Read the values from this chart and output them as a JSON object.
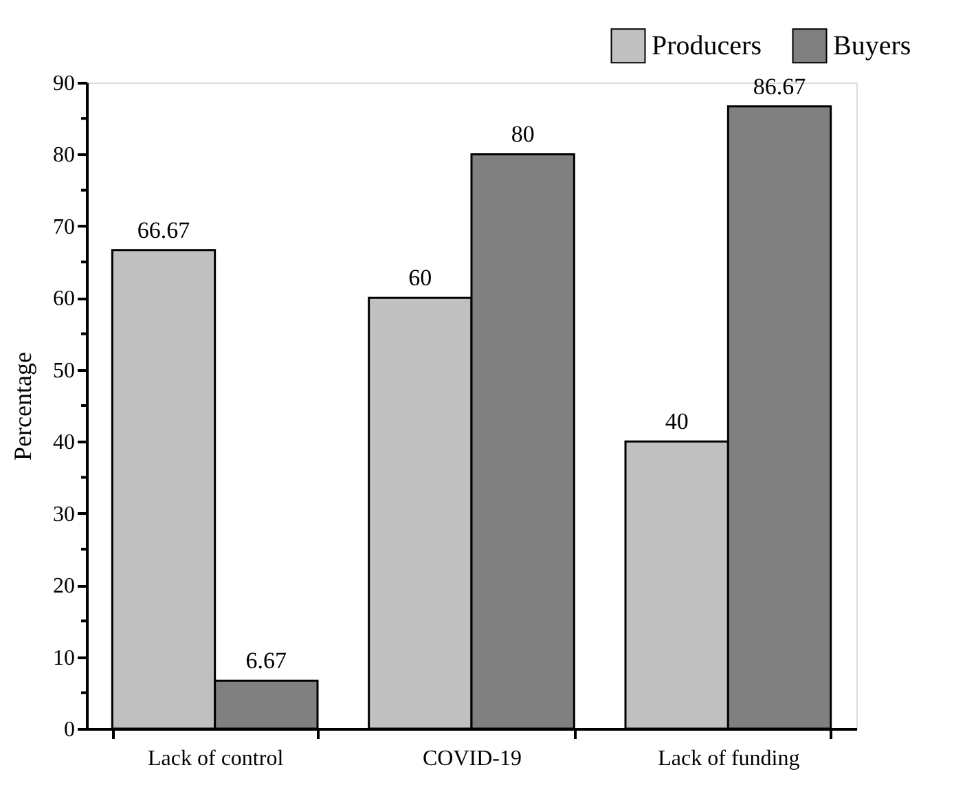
{
  "chart_data": {
    "type": "bar",
    "ylabel": "Percentage",
    "categories": [
      "Lack of control",
      "COVID-19",
      "Lack of funding"
    ],
    "series": [
      {
        "name": "Producers",
        "color": "#c0c0c0",
        "values": [
          66.67,
          60,
          40
        ]
      },
      {
        "name": "Buyers",
        "color": "#808080",
        "values": [
          6.67,
          80,
          86.67
        ]
      }
    ],
    "ylim": [
      0,
      90
    ],
    "yticks": [
      0,
      {
        "value": 5,
        "label": null
      },
      10,
      {
        "value": 15,
        "label": null
      },
      20,
      {
        "value": 25,
        "label": null
      },
      30,
      {
        "value": 35,
        "label": null
      },
      40,
      {
        "value": 45,
        "label": null
      },
      50,
      {
        "value": 55,
        "label": null
      },
      60,
      {
        "value": 65,
        "label": null
      },
      70,
      {
        "value": 75,
        "label": null
      },
      80,
      {
        "value": 85,
        "label": null
      },
      90
    ],
    "data_labels": true,
    "legend": "top right",
    "grid": false
  }
}
